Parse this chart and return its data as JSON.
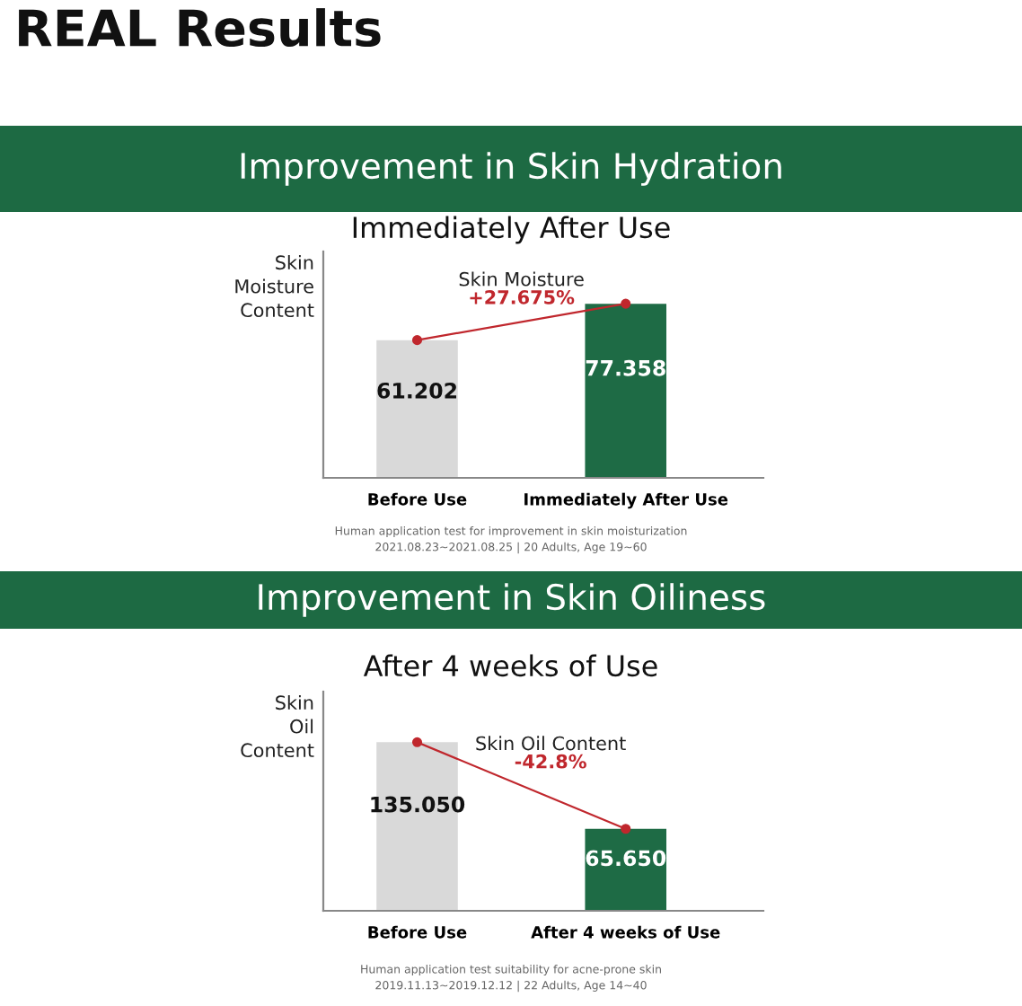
{
  "chart_data": [
    {
      "type": "bar",
      "title": "Improvement in Skin Hydration",
      "subtitle": "Immediately After Use",
      "ylabel": "Skin Moisture Content",
      "categories": [
        "Before Use",
        "Immediately After Use"
      ],
      "series": [
        {
          "values": [
            61.202,
            77.358
          ],
          "colors": [
            "#d9d9d9",
            "#1e6b45"
          ],
          "value_labels": [
            "61.202",
            "77.358"
          ]
        },
        {
          "type": "line",
          "name": "Skin Moisture",
          "color": "#c0272d",
          "values": [
            61.202,
            77.358
          ],
          "marker": "circle"
        }
      ],
      "annotations": [
        "REAL Results",
        "+27.675%",
        "Human application test for improvement in skin moisturization",
        "2021.08.23~2021.08.25 | 20 Adults, Age 19~60"
      ],
      "grid": false,
      "legend": false
    },
    {
      "type": "bar",
      "title": "Improvement in Skin Oiliness",
      "subtitle": "After 4 weeks of Use",
      "ylabel": "Skin Oil Content",
      "categories": [
        "Before Use",
        "After 4 weeks of Use"
      ],
      "series": [
        {
          "values": [
            135.05,
            65.65
          ],
          "colors": [
            "#d9d9d9",
            "#1e6b45"
          ],
          "value_labels": [
            "135.050",
            "65.650"
          ]
        },
        {
          "type": "line",
          "name": "Skin Oil Content",
          "color": "#c0272d",
          "values": [
            135.05,
            65.65
          ],
          "marker": "circle"
        }
      ],
      "annotations": [
        "-42.8%",
        "Human application test suitability for acne-prone skin",
        "2019.11.13~2019.12.12 | 22 Adults, Age 14~40"
      ],
      "grid": false,
      "legend": false
    }
  ]
}
